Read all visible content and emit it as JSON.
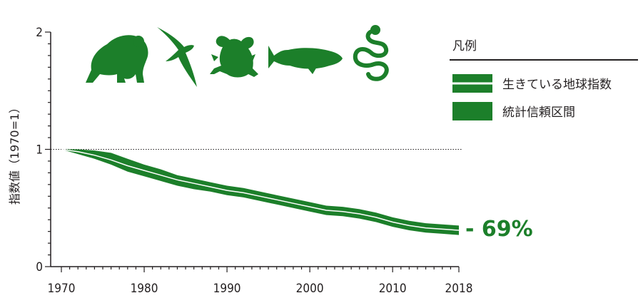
{
  "chart_data": {
    "type": "area",
    "ylabel": "指数値（1970=1）",
    "ylim": [
      0,
      2
    ],
    "y_ticks": [
      "0",
      "1",
      "2"
    ],
    "xlim": [
      1970,
      2018
    ],
    "x_ticks": [
      "1970",
      "1980",
      "1990",
      "2000",
      "2010",
      "2018"
    ],
    "x": [
      1970,
      1972,
      1974,
      1976,
      1978,
      1980,
      1982,
      1984,
      1986,
      1988,
      1990,
      1992,
      1994,
      1996,
      1998,
      2000,
      2002,
      2004,
      2006,
      2008,
      2010,
      2012,
      2014,
      2016,
      2018
    ],
    "series": [
      {
        "name": "生きている地球指数",
        "values": [
          1.0,
          0.98,
          0.95,
          0.91,
          0.86,
          0.82,
          0.78,
          0.74,
          0.71,
          0.68,
          0.65,
          0.63,
          0.6,
          0.57,
          0.54,
          0.51,
          0.48,
          0.47,
          0.45,
          0.42,
          0.38,
          0.35,
          0.33,
          0.32,
          0.31
        ],
        "upper": [
          1.0,
          1.0,
          0.99,
          0.97,
          0.92,
          0.87,
          0.83,
          0.78,
          0.75,
          0.72,
          0.69,
          0.67,
          0.64,
          0.61,
          0.58,
          0.55,
          0.52,
          0.51,
          0.49,
          0.46,
          0.42,
          0.39,
          0.37,
          0.36,
          0.35
        ],
        "lower": [
          1.0,
          0.96,
          0.92,
          0.87,
          0.81,
          0.77,
          0.73,
          0.69,
          0.66,
          0.64,
          0.61,
          0.59,
          0.56,
          0.53,
          0.5,
          0.47,
          0.44,
          0.43,
          0.41,
          0.38,
          0.34,
          0.31,
          0.29,
          0.28,
          0.27
        ]
      }
    ],
    "baseline": 1,
    "annotation": "- 69%",
    "legend": {
      "title": "凡例",
      "items": [
        "生きている地球指数",
        "統計信頼区間"
      ],
      "position": "top-right"
    }
  },
  "colors": {
    "band": "#1c7f2a",
    "index_line": "#ffffff",
    "axis": "#231f20"
  },
  "icons": [
    "gorilla-icon",
    "bird-icon",
    "frog-icon",
    "fish-icon",
    "snake-icon"
  ]
}
